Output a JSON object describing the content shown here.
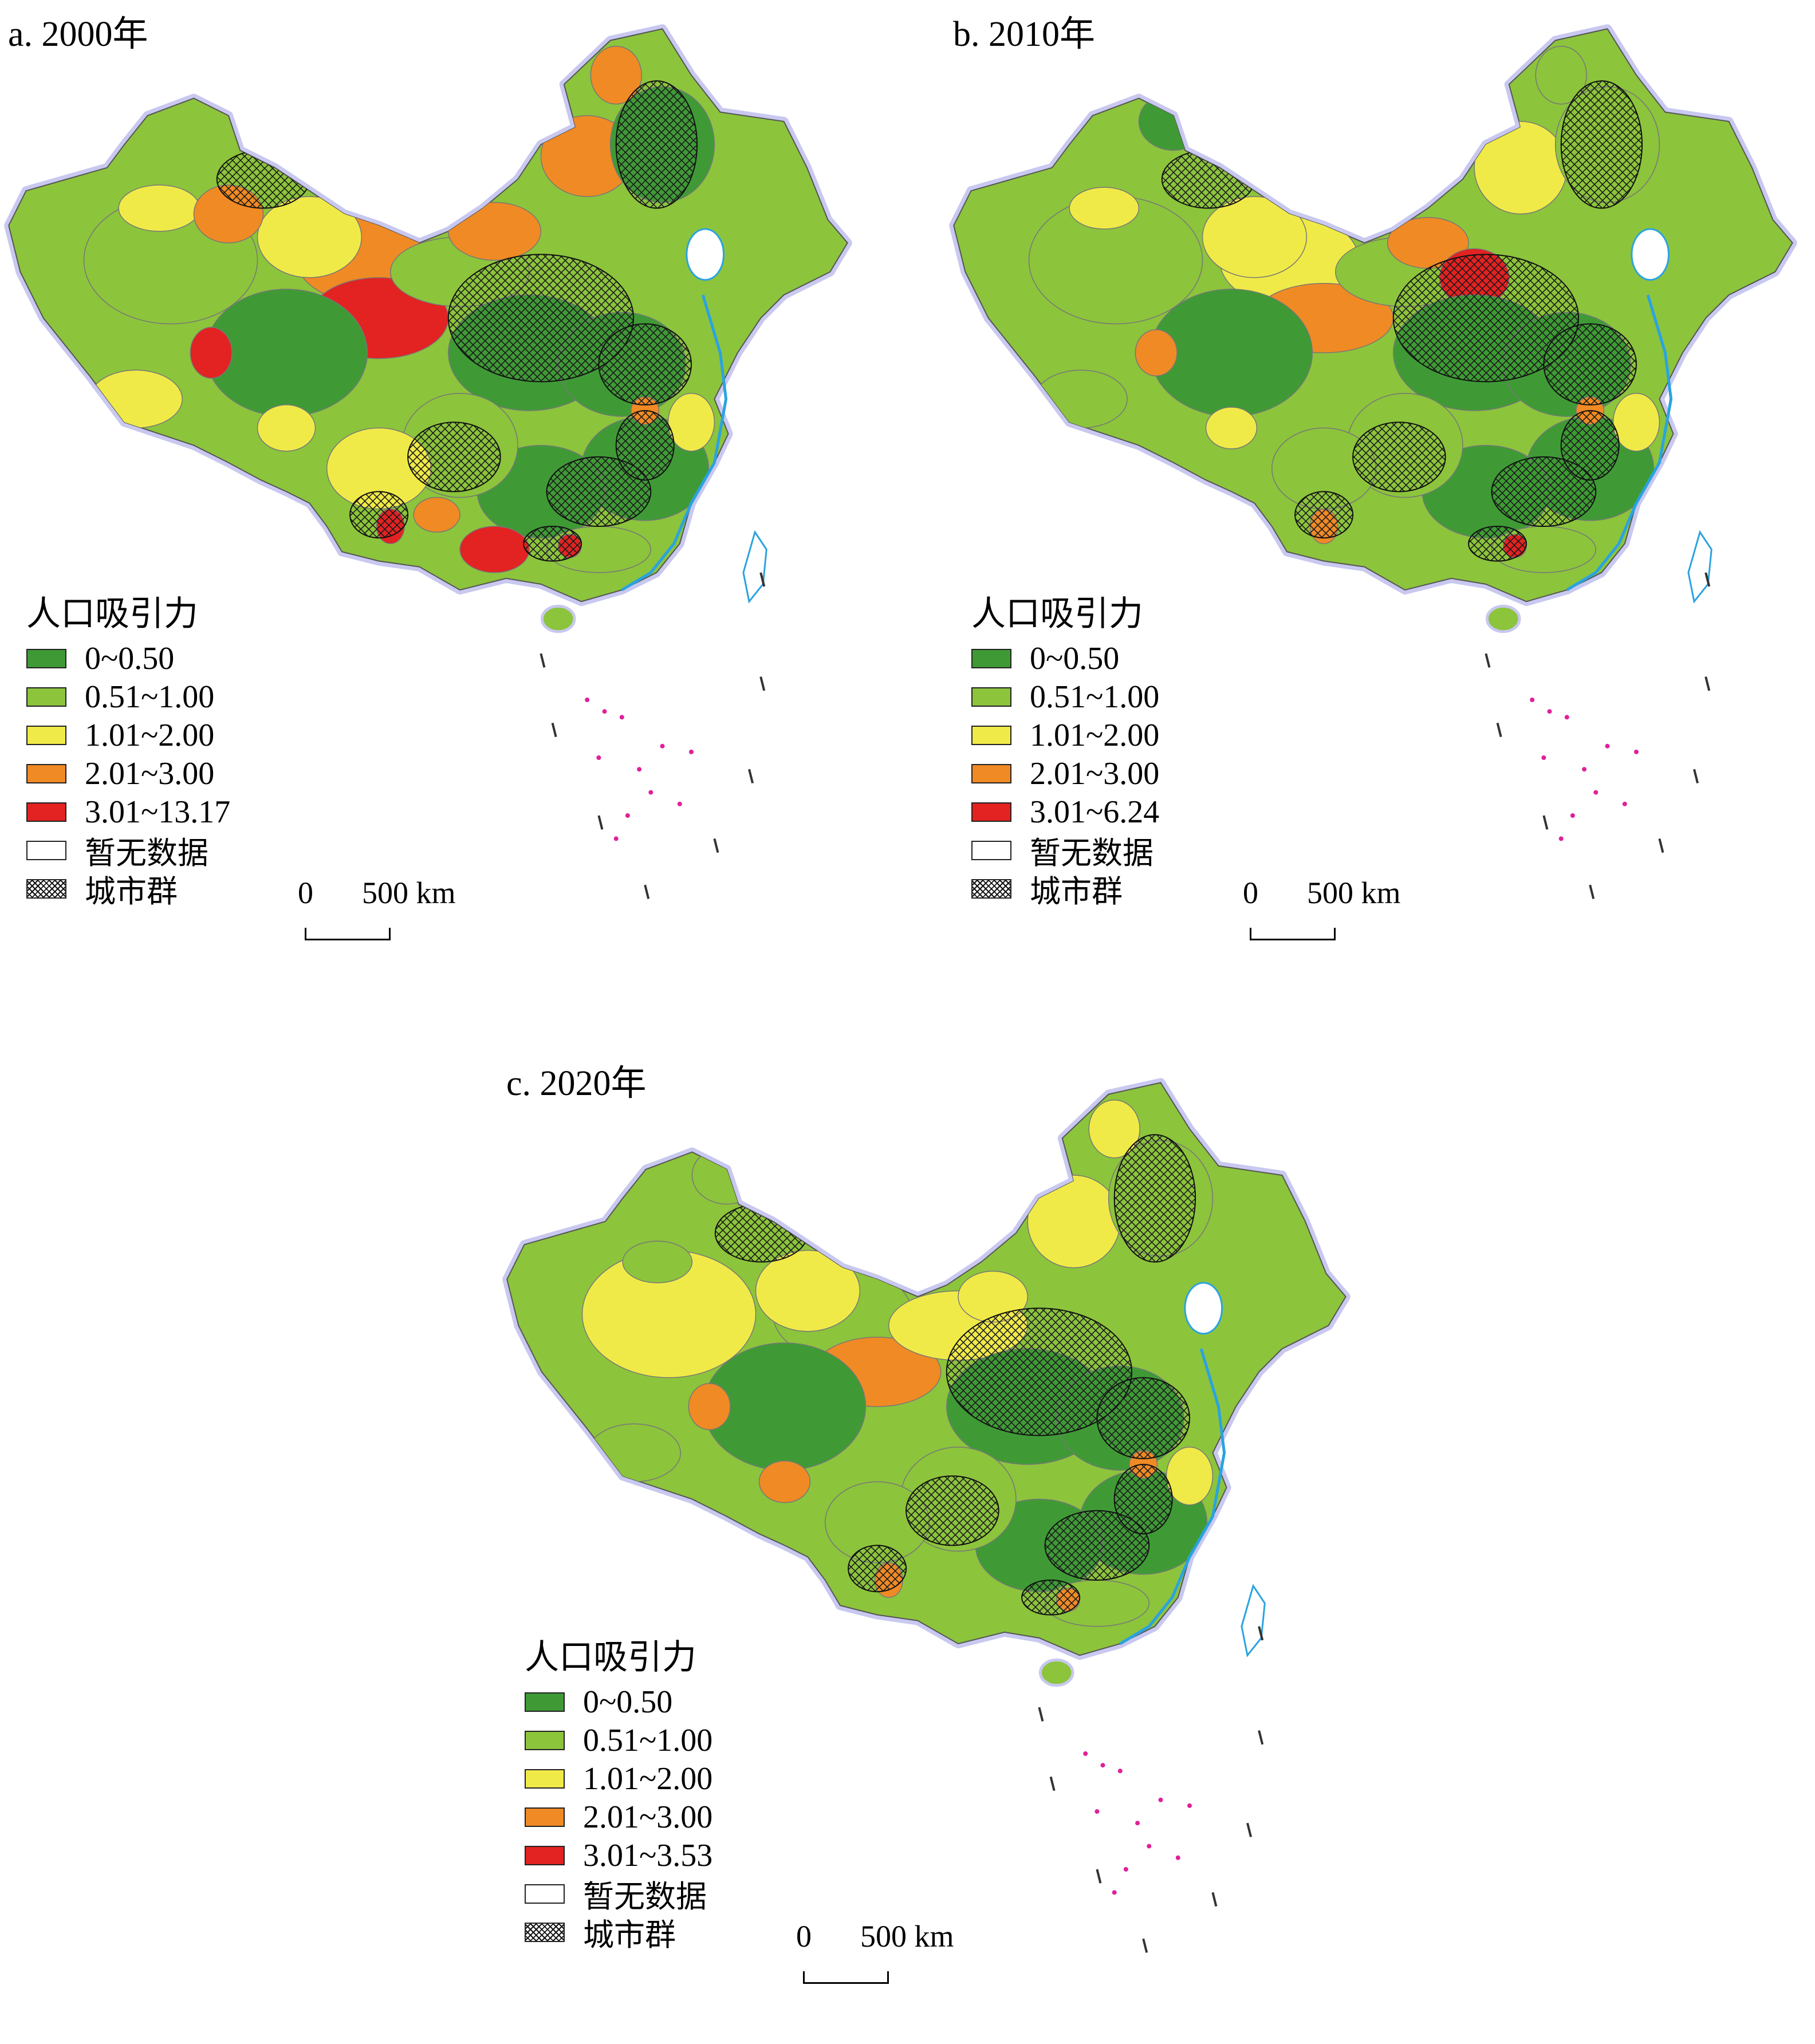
{
  "colors": {
    "class1": "#3f9a36",
    "class2": "#8cc43c",
    "class3": "#f0ea48",
    "class4": "#f08a24",
    "class5": "#e32222",
    "nodata": "#ffffff",
    "boundary": "#777777",
    "coast_glow": "#c8c8f0",
    "coast_line": "#2aa3e0",
    "islands": "#e0209a",
    "hatch": "#1a1a1a"
  },
  "panels": [
    {
      "title": "a. 2000年",
      "legend": {
        "title": "人口吸引力",
        "items": [
          {
            "label": "0~0.50",
            "color_key": "class1"
          },
          {
            "label": "0.51~1.00",
            "color_key": "class2"
          },
          {
            "label": "1.01~2.00",
            "color_key": "class3"
          },
          {
            "label": "2.01~3.00",
            "color_key": "class4"
          },
          {
            "label": "3.01~13.17",
            "color_key": "class5"
          },
          {
            "label": "暂无数据",
            "color_key": "nodata"
          },
          {
            "label": "城市群",
            "color_key": "hatch"
          }
        ]
      },
      "scale": {
        "zero": "0",
        "distance": "500 km"
      }
    },
    {
      "title": "b. 2010年",
      "legend": {
        "title": "人口吸引力",
        "items": [
          {
            "label": "0~0.50",
            "color_key": "class1"
          },
          {
            "label": "0.51~1.00",
            "color_key": "class2"
          },
          {
            "label": "1.01~2.00",
            "color_key": "class3"
          },
          {
            "label": "2.01~3.00",
            "color_key": "class4"
          },
          {
            "label": "3.01~6.24",
            "color_key": "class5"
          },
          {
            "label": "暂无数据",
            "color_key": "nodata"
          },
          {
            "label": "城市群",
            "color_key": "hatch"
          }
        ]
      },
      "scale": {
        "zero": "0",
        "distance": "500 km"
      }
    },
    {
      "title": "c. 2020年",
      "legend": {
        "title": "人口吸引力",
        "items": [
          {
            "label": "0~0.50",
            "color_key": "class1"
          },
          {
            "label": "0.51~1.00",
            "color_key": "class2"
          },
          {
            "label": "1.01~2.00",
            "color_key": "class3"
          },
          {
            "label": "2.01~3.00",
            "color_key": "class4"
          },
          {
            "label": "3.01~3.53",
            "color_key": "class5"
          },
          {
            "label": "暂无数据",
            "color_key": "nodata"
          },
          {
            "label": "城市群",
            "color_key": "hatch"
          }
        ]
      },
      "scale": {
        "zero": "0",
        "distance": "500 km"
      }
    }
  ]
}
